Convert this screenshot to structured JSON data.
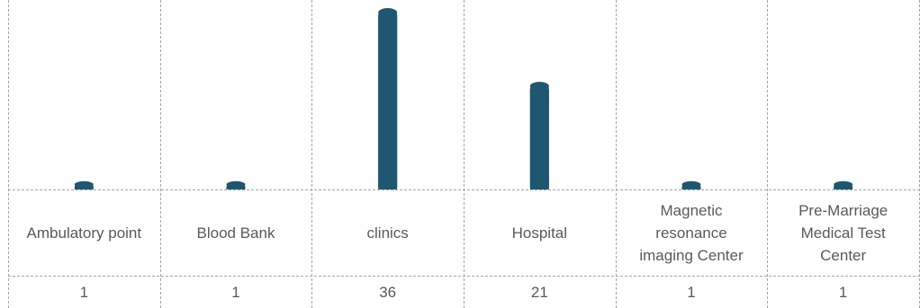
{
  "chart_data": {
    "type": "bar",
    "title": "",
    "xlabel": "",
    "ylabel": "",
    "categories": [
      "Ambulatory point",
      "Blood Bank",
      "clinics",
      "Hospital",
      "Magnetic resonance imaging Center",
      "Pre-Marriage Medical Test Center"
    ],
    "category_label_lines": [
      [
        "Ambulatory point"
      ],
      [
        "Blood Bank"
      ],
      [
        "clinics"
      ],
      [
        "Hospital"
      ],
      [
        "Magnetic",
        "resonance",
        "imaging Center"
      ],
      [
        "Pre-Marriage",
        "Medical Test",
        "Center"
      ]
    ],
    "values": [
      1,
      1,
      36,
      21,
      1,
      1
    ],
    "value_labels": [
      "1",
      "1",
      "36",
      "21",
      "1",
      "1"
    ],
    "ylim": [
      0,
      36
    ],
    "grid": true,
    "legend": "none",
    "data_table": true,
    "colors": {
      "bar": "#1f5670",
      "grid": "#a6a6a6",
      "text": "#595959"
    }
  }
}
